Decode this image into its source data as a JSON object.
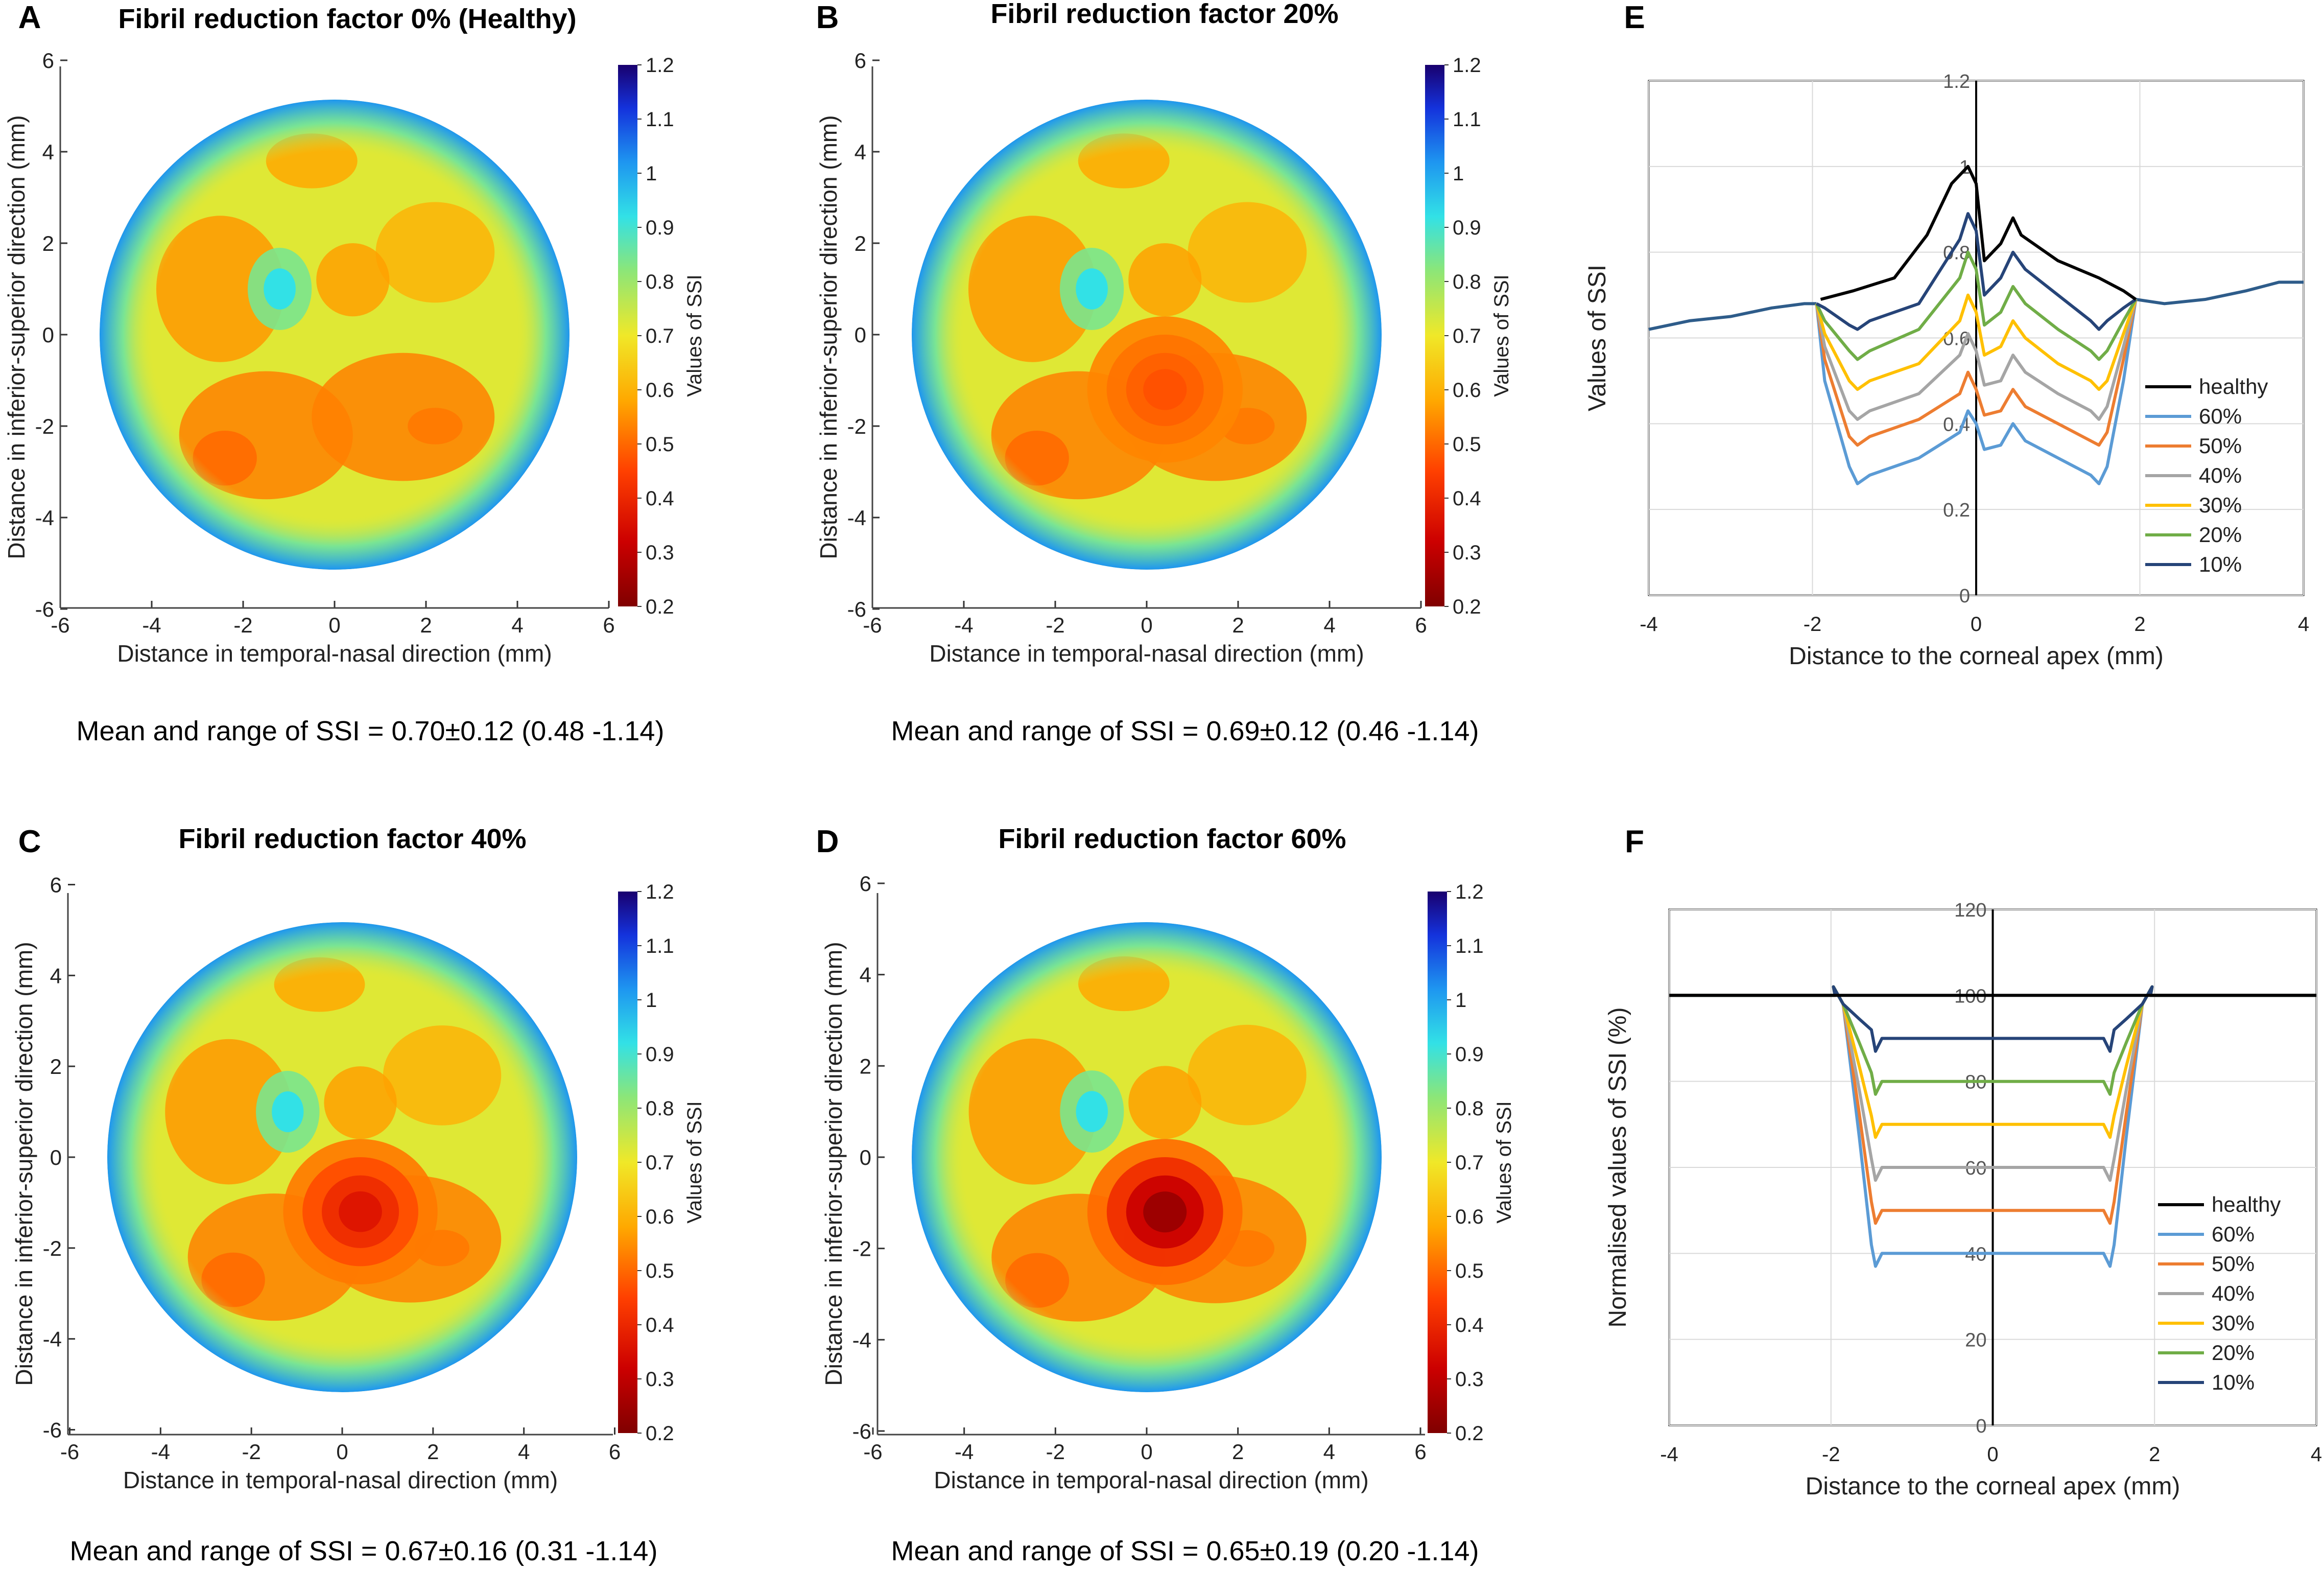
{
  "chart_data": [
    {
      "type": "heatmap",
      "panel": "A",
      "title": "Fibril reduction factor 0% (Healthy)",
      "xlabel": "Distance in temporal-nasal direction (mm)",
      "ylabel": "Distance in inferior-superior direction (mm)",
      "xlim": [
        -6,
        6
      ],
      "ylim": [
        -6,
        6
      ],
      "xticks": [
        "-6",
        "-4",
        "-2",
        "0",
        "2",
        "4",
        "6"
      ],
      "yticks": [
        "6",
        "4",
        "2",
        "0",
        "-2",
        "-4",
        "-6"
      ],
      "colorbar": {
        "label": "Values of SSI",
        "range": [
          0.2,
          1.2
        ],
        "ticks": [
          "1.2",
          "1.1",
          "1",
          "0.9",
          "0.8",
          "0.7",
          "0.6",
          "0.5",
          "0.4",
          "0.3",
          "0.2"
        ]
      },
      "summary": "Mean and range of SSI = 0.70±0.12 (0.48 -1.14)",
      "mean": 0.7,
      "sd": 0.12,
      "min": 0.48,
      "max": 1.14,
      "central_min": 0.55
    },
    {
      "type": "heatmap",
      "panel": "B",
      "title": "Fibril reduction factor 20%",
      "xlabel": "Distance in temporal-nasal direction (mm)",
      "ylabel": "Distance in inferior-superior direction (mm)",
      "xlim": [
        -6,
        6
      ],
      "ylim": [
        -6,
        6
      ],
      "xticks": [
        "-6",
        "-4",
        "-2",
        "0",
        "2",
        "4",
        "6"
      ],
      "yticks": [
        "6",
        "4",
        "2",
        "0",
        "-2",
        "-4",
        "-6"
      ],
      "colorbar": {
        "label": "Values of SSI",
        "range": [
          0.2,
          1.2
        ],
        "ticks": [
          "1.2",
          "1.1",
          "1",
          "0.9",
          "0.8",
          "0.7",
          "0.6",
          "0.5",
          "0.4",
          "0.3",
          "0.2"
        ]
      },
      "summary": "Mean and range of SSI = 0.69±0.12 (0.46 -1.14)",
      "mean": 0.69,
      "sd": 0.12,
      "min": 0.46,
      "max": 1.14,
      "central_min": 0.47
    },
    {
      "type": "heatmap",
      "panel": "C",
      "title": "Fibril reduction factor 40%",
      "xlabel": "Distance in temporal-nasal direction (mm)",
      "ylabel": "Distance in inferior-superior direction (mm)",
      "xlim": [
        -6,
        6
      ],
      "ylim": [
        -6,
        6
      ],
      "xticks": [
        "-6",
        "-4",
        "-2",
        "0",
        "2",
        "4",
        "6"
      ],
      "yticks": [
        "6",
        "4",
        "2",
        "0",
        "-2",
        "-4",
        "-6"
      ],
      "colorbar": {
        "label": "Values of SSI",
        "range": [
          0.2,
          1.2
        ],
        "ticks": [
          "1.2",
          "1.1",
          "1",
          "0.9",
          "0.8",
          "0.7",
          "0.6",
          "0.5",
          "0.4",
          "0.3",
          "0.2"
        ]
      },
      "summary": "Mean and range of SSI = 0.67±0.16 (0.31 -1.14)",
      "mean": 0.67,
      "sd": 0.16,
      "min": 0.31,
      "max": 1.14,
      "central_min": 0.36
    },
    {
      "type": "heatmap",
      "panel": "D",
      "title": "Fibril reduction factor 60%",
      "xlabel": "Distance in temporal-nasal direction (mm)",
      "ylabel": "Distance in inferior-superior direction (mm)",
      "xlim": [
        -6,
        6
      ],
      "ylim": [
        -6,
        6
      ],
      "xticks": [
        "-6",
        "-4",
        "-2",
        "0",
        "2",
        "4",
        "6"
      ],
      "yticks": [
        "6",
        "4",
        "2",
        "0",
        "-2",
        "-4",
        "-6"
      ],
      "colorbar": {
        "label": "Values of SSI",
        "range": [
          0.2,
          1.2
        ],
        "ticks": [
          "1.2",
          "1.1",
          "1",
          "0.9",
          "0.8",
          "0.7",
          "0.6",
          "0.5",
          "0.4",
          "0.3",
          "0.2"
        ]
      },
      "summary": "Mean and range of SSI = 0.65±0.19 (0.20 -1.14)",
      "mean": 0.65,
      "sd": 0.19,
      "min": 0.2,
      "max": 1.14,
      "central_min": 0.24
    },
    {
      "type": "line",
      "panel": "E",
      "xlabel": "Distance to the corneal apex (mm)",
      "ylabel": "Values of SSI",
      "xlim": [
        -4,
        4
      ],
      "ylim": [
        0,
        1.2
      ],
      "xticks": [
        -4,
        -2,
        0,
        2,
        4
      ],
      "yticks": [
        0,
        0.2,
        0.4,
        0.6,
        0.8,
        1,
        1.2
      ],
      "legend": "center-right",
      "series": [
        {
          "name": "healthy",
          "color": "#000000",
          "central": [
            [
              -1.9,
              0.69
            ],
            [
              -1.5,
              0.71
            ],
            [
              -1.0,
              0.74
            ],
            [
              -0.6,
              0.84
            ],
            [
              -0.3,
              0.96
            ],
            [
              -0.1,
              1.0
            ],
            [
              0.0,
              0.96
            ],
            [
              0.1,
              0.78
            ],
            [
              0.3,
              0.82
            ],
            [
              0.45,
              0.88
            ],
            [
              0.55,
              0.84
            ],
            [
              1.0,
              0.78
            ],
            [
              1.5,
              0.74
            ],
            [
              1.8,
              0.71
            ],
            [
              1.95,
              0.69
            ]
          ]
        },
        {
          "name": "60%",
          "color": "#5b9bd5",
          "central": [
            [
              -1.95,
              0.68
            ],
            [
              -1.85,
              0.5
            ],
            [
              -1.55,
              0.3
            ],
            [
              -1.45,
              0.26
            ],
            [
              -1.3,
              0.28
            ],
            [
              -0.7,
              0.32
            ],
            [
              -0.2,
              0.38
            ],
            [
              -0.1,
              0.43
            ],
            [
              0.0,
              0.4
            ],
            [
              0.1,
              0.34
            ],
            [
              0.3,
              0.35
            ],
            [
              0.45,
              0.4
            ],
            [
              0.6,
              0.36
            ],
            [
              1.0,
              0.32
            ],
            [
              1.4,
              0.28
            ],
            [
              1.5,
              0.26
            ],
            [
              1.6,
              0.3
            ],
            [
              1.8,
              0.5
            ],
            [
              1.95,
              0.69
            ]
          ]
        },
        {
          "name": "50%",
          "color": "#ed7d31",
          "central": [
            [
              -1.95,
              0.68
            ],
            [
              -1.85,
              0.55
            ],
            [
              -1.55,
              0.37
            ],
            [
              -1.45,
              0.35
            ],
            [
              -1.3,
              0.37
            ],
            [
              -0.7,
              0.41
            ],
            [
              -0.2,
              0.47
            ],
            [
              -0.1,
              0.52
            ],
            [
              0.0,
              0.48
            ],
            [
              0.1,
              0.42
            ],
            [
              0.3,
              0.43
            ],
            [
              0.45,
              0.48
            ],
            [
              0.6,
              0.44
            ],
            [
              1.0,
              0.4
            ],
            [
              1.4,
              0.36
            ],
            [
              1.5,
              0.35
            ],
            [
              1.6,
              0.38
            ],
            [
              1.8,
              0.55
            ],
            [
              1.95,
              0.69
            ]
          ]
        },
        {
          "name": "40%",
          "color": "#a5a5a5",
          "central": [
            [
              -1.95,
              0.68
            ],
            [
              -1.85,
              0.58
            ],
            [
              -1.55,
              0.43
            ],
            [
              -1.45,
              0.41
            ],
            [
              -1.3,
              0.43
            ],
            [
              -0.7,
              0.47
            ],
            [
              -0.2,
              0.56
            ],
            [
              -0.1,
              0.61
            ],
            [
              0.0,
              0.57
            ],
            [
              0.1,
              0.49
            ],
            [
              0.3,
              0.5
            ],
            [
              0.45,
              0.56
            ],
            [
              0.6,
              0.52
            ],
            [
              1.0,
              0.47
            ],
            [
              1.4,
              0.43
            ],
            [
              1.5,
              0.41
            ],
            [
              1.6,
              0.44
            ],
            [
              1.8,
              0.58
            ],
            [
              1.95,
              0.69
            ]
          ]
        },
        {
          "name": "30%",
          "color": "#ffc000",
          "central": [
            [
              -1.95,
              0.68
            ],
            [
              -1.85,
              0.61
            ],
            [
              -1.55,
              0.5
            ],
            [
              -1.45,
              0.48
            ],
            [
              -1.3,
              0.5
            ],
            [
              -0.7,
              0.54
            ],
            [
              -0.2,
              0.64
            ],
            [
              -0.1,
              0.7
            ],
            [
              0.0,
              0.66
            ],
            [
              0.1,
              0.56
            ],
            [
              0.3,
              0.58
            ],
            [
              0.45,
              0.64
            ],
            [
              0.6,
              0.6
            ],
            [
              1.0,
              0.54
            ],
            [
              1.4,
              0.5
            ],
            [
              1.5,
              0.48
            ],
            [
              1.6,
              0.5
            ],
            [
              1.8,
              0.61
            ],
            [
              1.95,
              0.69
            ]
          ]
        },
        {
          "name": "20%",
          "color": "#70ad47",
          "central": [
            [
              -1.95,
              0.68
            ],
            [
              -1.85,
              0.64
            ],
            [
              -1.55,
              0.57
            ],
            [
              -1.45,
              0.55
            ],
            [
              -1.3,
              0.57
            ],
            [
              -0.7,
              0.62
            ],
            [
              -0.2,
              0.74
            ],
            [
              -0.1,
              0.8
            ],
            [
              0.0,
              0.76
            ],
            [
              0.1,
              0.63
            ],
            [
              0.3,
              0.66
            ],
            [
              0.45,
              0.72
            ],
            [
              0.6,
              0.68
            ],
            [
              1.0,
              0.62
            ],
            [
              1.4,
              0.57
            ],
            [
              1.5,
              0.55
            ],
            [
              1.6,
              0.57
            ],
            [
              1.8,
              0.64
            ],
            [
              1.95,
              0.69
            ]
          ]
        },
        {
          "name": "10%",
          "color": "#264478",
          "central": [
            [
              -1.95,
              0.68
            ],
            [
              -1.85,
              0.67
            ],
            [
              -1.55,
              0.63
            ],
            [
              -1.45,
              0.62
            ],
            [
              -1.3,
              0.64
            ],
            [
              -0.7,
              0.68
            ],
            [
              -0.2,
              0.83
            ],
            [
              -0.1,
              0.89
            ],
            [
              0.0,
              0.85
            ],
            [
              0.1,
              0.7
            ],
            [
              0.3,
              0.74
            ],
            [
              0.45,
              0.8
            ],
            [
              0.6,
              0.76
            ],
            [
              1.0,
              0.7
            ],
            [
              1.4,
              0.64
            ],
            [
              1.5,
              0.62
            ],
            [
              1.6,
              0.64
            ],
            [
              1.8,
              0.67
            ],
            [
              1.95,
              0.69
            ]
          ]
        }
      ],
      "shared_outside": {
        "color": "#2e5c8a",
        "left": [
          [
            -4,
            0.62
          ],
          [
            -3.5,
            0.64
          ],
          [
            -3,
            0.65
          ],
          [
            -2.5,
            0.67
          ],
          [
            -2.1,
            0.68
          ],
          [
            -1.95,
            0.68
          ]
        ],
        "right": [
          [
            1.95,
            0.69
          ],
          [
            2.3,
            0.68
          ],
          [
            2.8,
            0.69
          ],
          [
            3.3,
            0.71
          ],
          [
            3.7,
            0.73
          ],
          [
            4,
            0.73
          ]
        ]
      }
    },
    {
      "type": "line",
      "panel": "F",
      "xlabel": "Distance to the corneal apex (mm)",
      "ylabel": "Normalised values of SSI (%)",
      "xlim": [
        -4,
        4
      ],
      "ylim": [
        0,
        120
      ],
      "xticks": [
        -4,
        -2,
        0,
        2,
        4
      ],
      "yticks": [
        0,
        20,
        40,
        60,
        80,
        100,
        120
      ],
      "legend": "bottom-right",
      "series": [
        {
          "name": "healthy",
          "color": "#000000",
          "level": 100
        },
        {
          "name": "60%",
          "color": "#5b9bd5",
          "level": 40
        },
        {
          "name": "50%",
          "color": "#ed7d31",
          "level": 50
        },
        {
          "name": "40%",
          "color": "#a5a5a5",
          "level": 60
        },
        {
          "name": "30%",
          "color": "#ffc000",
          "level": 70
        },
        {
          "name": "20%",
          "color": "#70ad47",
          "level": 80
        },
        {
          "name": "10%",
          "color": "#264478",
          "level": 90
        }
      ],
      "plateau_x": [
        -1.45,
        1.45
      ],
      "edge_x": [
        -1.95,
        1.95
      ]
    }
  ],
  "panel_letters": [
    "A",
    "B",
    "C",
    "D",
    "E",
    "F"
  ]
}
